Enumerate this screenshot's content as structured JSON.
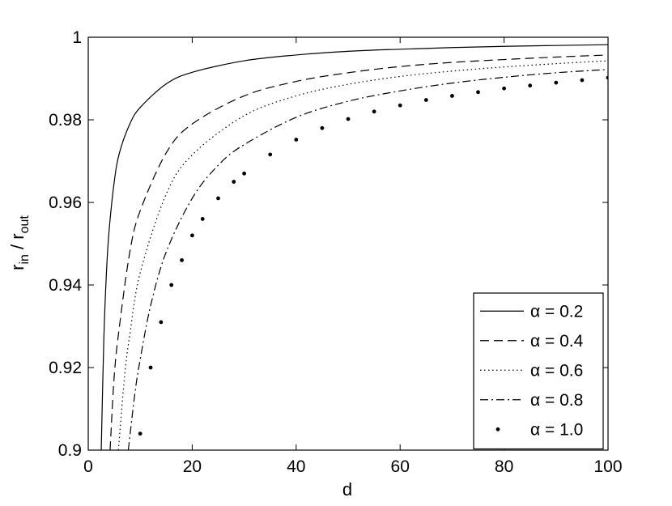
{
  "chart_data": {
    "type": "line",
    "title": "",
    "xlabel": "d",
    "ylabel": "r_in / r_out",
    "ylabel_parts": {
      "r1": "r",
      "sub1": "in",
      "sep": " / ",
      "r2": "r",
      "sub2": "out"
    },
    "xlim": [
      0,
      100
    ],
    "ylim": [
      0.9,
      1.0
    ],
    "xticks": [
      0,
      20,
      40,
      60,
      80,
      100
    ],
    "xtick_labels": [
      "0",
      "20",
      "40",
      "60",
      "80",
      "100"
    ],
    "yticks": [
      0.9,
      0.92,
      0.94,
      0.96,
      0.98,
      1.0
    ],
    "ytick_labels": [
      "0.9",
      "0.92",
      "0.94",
      "0.96",
      "0.98",
      "1"
    ],
    "grid": false,
    "legend_position": "bottom-right",
    "series": [
      {
        "name": "α = 0.2",
        "style": "solid",
        "x": [
          2.5,
          3,
          3.5,
          4,
          5,
          6,
          8,
          10,
          15,
          20,
          30,
          40,
          50,
          60,
          70,
          80,
          90,
          100
        ],
        "y": [
          0.9,
          0.927,
          0.943,
          0.953,
          0.965,
          0.972,
          0.979,
          0.983,
          0.9887,
          0.9915,
          0.9943,
          0.9957,
          0.9966,
          0.9971,
          0.9975,
          0.9978,
          0.998,
          0.9982
        ]
      },
      {
        "name": "α = 0.4",
        "style": "dashed",
        "x": [
          4.2,
          5,
          6,
          8,
          10,
          15,
          20,
          30,
          40,
          50,
          60,
          70,
          80,
          90,
          100
        ],
        "y": [
          0.9,
          0.918,
          0.93,
          0.948,
          0.958,
          0.972,
          0.979,
          0.9858,
          0.9893,
          0.9914,
          0.9929,
          0.9939,
          0.9946,
          0.9952,
          0.9957
        ]
      },
      {
        "name": "α = 0.6",
        "style": "dotted",
        "x": [
          5.8,
          7,
          8,
          10,
          15,
          20,
          30,
          40,
          50,
          60,
          70,
          80,
          90,
          100
        ],
        "y": [
          0.9,
          0.918,
          0.928,
          0.943,
          0.962,
          0.9715,
          0.981,
          0.9858,
          0.9886,
          0.9905,
          0.9918,
          0.9928,
          0.9936,
          0.9943
        ]
      },
      {
        "name": "α = 0.8",
        "style": "dashdot",
        "x": [
          7.7,
          9,
          10,
          12,
          15,
          20,
          25,
          30,
          40,
          50,
          60,
          70,
          80,
          90,
          100
        ],
        "y": [
          0.9,
          0.914,
          0.922,
          0.935,
          0.948,
          0.961,
          0.969,
          0.974,
          0.9806,
          0.9845,
          0.987,
          0.9889,
          0.9903,
          0.9914,
          0.9922
        ]
      },
      {
        "name": "α = 1.0",
        "style": "dots",
        "x": [
          10,
          12,
          14,
          16,
          18,
          20,
          22,
          25,
          28,
          30,
          35,
          40,
          45,
          50,
          55,
          60,
          65,
          70,
          75,
          80,
          85,
          90,
          95,
          100
        ],
        "y": [
          0.904,
          0.92,
          0.931,
          0.94,
          0.946,
          0.952,
          0.956,
          0.961,
          0.965,
          0.967,
          0.9716,
          0.9752,
          0.978,
          0.9802,
          0.982,
          0.9835,
          0.9848,
          0.9858,
          0.9867,
          0.9876,
          0.9883,
          0.989,
          0.9896,
          0.9902
        ]
      }
    ]
  }
}
